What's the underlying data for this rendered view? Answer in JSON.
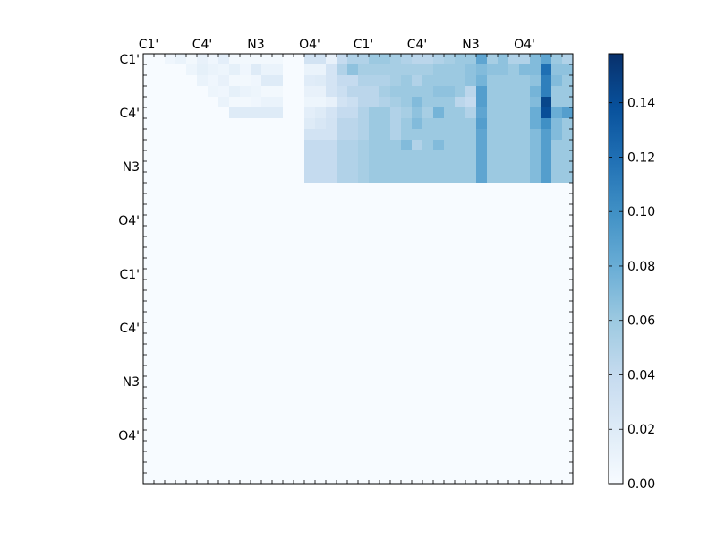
{
  "chart_data": {
    "type": "heatmap",
    "title": "",
    "xlabel": "",
    "ylabel": "",
    "n": 40,
    "x_tick_labels": [
      "C1'",
      "C4'",
      "N3",
      "O4'",
      "C1'",
      "C4'",
      "N3",
      "O4'"
    ],
    "x_tick_indices": [
      0.5,
      5.5,
      10.5,
      15.5,
      20.5,
      25.5,
      30.5,
      35.5
    ],
    "y_tick_labels": [
      "C1'",
      "C4'",
      "N3",
      "O4'",
      "C1'",
      "C4'",
      "N3",
      "O4'"
    ],
    "y_tick_indices": [
      0.5,
      5.5,
      10.5,
      15.5,
      20.5,
      25.5,
      30.5,
      35.5
    ],
    "colormap": {
      "name": "Blues",
      "stops": [
        "#f7fbff",
        "#deebf7",
        "#c6dbef",
        "#9ecae1",
        "#6baed6",
        "#4292c6",
        "#2171b5",
        "#08519c",
        "#08306b"
      ],
      "vmin": 0,
      "vmax": 0.158
    },
    "colorbar_ticks": [
      "0.00",
      "0.02",
      "0.04",
      "0.06",
      "0.08",
      "0.10",
      "0.12",
      "0.14"
    ],
    "colorbar_tick_values": [
      0,
      0.02,
      0.04,
      0.06,
      0.08,
      0.1,
      0.12,
      0.14
    ],
    "matrix_rows": [
      "0.000 0.000 0.006 0.010 0.004 0.012 0.006 0.016 0.004 0.004 0.004 0.004 0.004 0.000 0.000 0.030 0.030 0.012 0.040 0.050 0.050 0.060 0.060 0.055 0.050 0.045 0.045 0.050 0.055 0.060 0.060 0.085 0.055 0.065 0.050 0.050 0.070 0.085 0.060 0.050",
      "0.000 0.000 0.000 0.000 0.008 0.014 0.010 0.008 0.014 0.006 0.020 0.010 0.010 0.000 0.000 0.010 0.010 0.028 0.050 0.065 0.055 0.055 0.055 0.055 0.055 0.055 0.055 0.060 0.060 0.060 0.065 0.070 0.065 0.065 0.060 0.070 0.070 0.120 0.065 0.065",
      "0.000 0.000 0.000 0.000 0.000 0.010 0.006 0.012 0.004 0.004 0.006 0.020 0.020 0.000 0.000 0.018 0.020 0.028 0.040 0.040 0.050 0.050 0.050 0.055 0.060 0.050 0.060 0.060 0.060 0.060 0.065 0.075 0.060 0.060 0.060 0.060 0.065 0.110 0.070 0.060",
      "0.000 0.000 0.000 0.000 0.000 0.000 0.008 0.006 0.014 0.010 0.008 0.004 0.004 0.000 0.000 0.012 0.012 0.028 0.035 0.045 0.045 0.045 0.055 0.060 0.060 0.060 0.060 0.065 0.065 0.060 0.045 0.090 0.060 0.060 0.060 0.060 0.075 0.110 0.060 0.060",
      "0.000 0.000 0.000 0.000 0.000 0.000 0.000 0.010 0.004 0.004 0.006 0.010 0.010 0.000 0.000 0.008 0.008 0.012 0.030 0.035 0.045 0.045 0.050 0.055 0.060 0.070 0.060 0.060 0.060 0.045 0.040 0.090 0.060 0.060 0.060 0.060 0.070 0.145 0.060 0.060",
      "0.000 0.000 0.000 0.000 0.000 0.000 0.000 0.000 0.020 0.020 0.020 0.020 0.020 0.000 0.000 0.016 0.020 0.028 0.040 0.040 0.050 0.060 0.060 0.050 0.055 0.065 0.055 0.075 0.060 0.060 0.050 0.085 0.060 0.060 0.060 0.060 0.080 0.140 0.080 0.090",
      "0.000 0.000 0.000 0.000 0.000 0.000 0.000 0.000 0.000 0.000 0.000 0.000 0.000 0.000 0.000 0.020 0.025 0.030 0.045 0.045 0.050 0.060 0.060 0.050 0.060 0.070 0.060 0.060 0.060 0.060 0.060 0.090 0.060 0.060 0.060 0.060 0.080 0.100 0.070 0.060",
      "0.000 0.000 0.000 0.000 0.000 0.000 0.000 0.000 0.000 0.000 0.000 0.000 0.000 0.000 0.000 0.030 0.030 0.030 0.045 0.045 0.050 0.060 0.060 0.050 0.060 0.060 0.060 0.060 0.060 0.060 0.060 0.085 0.060 0.060 0.060 0.060 0.070 0.090 0.070 0.060",
      "0.000 0.000 0.000 0.000 0.000 0.000 0.000 0.000 0.000 0.000 0.000 0.000 0.000 0.000 0.000 0.040 0.040 0.040 0.050 0.050 0.055 0.060 0.060 0.060 0.070 0.050 0.060 0.070 0.060 0.060 0.060 0.085 0.060 0.060 0.060 0.060 0.070 0.090 0.060 0.060",
      "0.000 0.000 0.000 0.000 0.000 0.000 0.000 0.000 0.000 0.000 0.000 0.000 0.000 0.000 0.000 0.040 0.040 0.040 0.050 0.050 0.055 0.060 0.060 0.060 0.060 0.060 0.060 0.060 0.060 0.060 0.060 0.085 0.060 0.060 0.060 0.060 0.070 0.090 0.060 0.060",
      "0.000 0.000 0.000 0.000 0.000 0.000 0.000 0.000 0.000 0.000 0.000 0.000 0.000 0.000 0.000 0.040 0.040 0.040 0.050 0.050 0.055 0.060 0.060 0.060 0.060 0.060 0.060 0.060 0.060 0.060 0.060 0.085 0.060 0.060 0.060 0.060 0.070 0.090 0.060 0.060",
      "0.000 0.000 0.000 0.000 0.000 0.000 0.000 0.000 0.000 0.000 0.000 0.000 0.000 0.000 0.000 0.040 0.040 0.040 0.050 0.050 0.055 0.060 0.060 0.060 0.060 0.060 0.060 0.060 0.060 0.060 0.060 0.085 0.060 0.060 0.060 0.060 0.070 0.090 0.060 0.060",
      "0.000 0.000 0.000 0.000 0.000 0.000 0.000 0.000 0.000 0.000 0.000 0.000 0.000 0.000 0.000 0.000 0.000 0.000 0.000 0.000 0.000 0.000 0.000 0.000 0.000 0.000 0.000 0.000 0.000 0.000 0.000 0.000 0.000 0.000 0.000 0.000 0.000 0.000 0.000 0.000",
      "0.000 0.000 0.000 0.000 0.000 0.000 0.000 0.000 0.000 0.000 0.000 0.000 0.000 0.000 0.000 0.000 0.000 0.000 0.000 0.000 0.000 0.000 0.000 0.000 0.000 0.000 0.000 0.000 0.000 0.000 0.000 0.000 0.000 0.000 0.000 0.000 0.000 0.000 0.000 0.000",
      "0.000 0.000 0.000 0.000 0.000 0.000 0.000 0.000 0.000 0.000 0.000 0.000 0.000 0.000 0.000 0.000 0.000 0.000 0.000 0.000 0.000 0.000 0.000 0.000 0.000 0.000 0.000 0.000 0.000 0.000 0.000 0.000 0.000 0.000 0.000 0.000 0.000 0.000 0.000 0.000",
      "0.000 0.000 0.000 0.000 0.000 0.000 0.000 0.000 0.000 0.000 0.000 0.000 0.000 0.000 0.000 0.000 0.000 0.000 0.000 0.000 0.000 0.000 0.000 0.000 0.000 0.000 0.000 0.000 0.000 0.000 0.000 0.000 0.000 0.000 0.000 0.000 0.000 0.000 0.000 0.000",
      "0.000 0.000 0.000 0.000 0.000 0.000 0.000 0.000 0.000 0.000 0.000 0.000 0.000 0.000 0.000 0.000 0.000 0.000 0.000 0.000 0.000 0.000 0.000 0.000 0.000 0.000 0.000 0.000 0.000 0.000 0.000 0.000 0.000 0.000 0.000 0.000 0.000 0.000 0.000 0.000",
      "0.000 0.000 0.000 0.000 0.000 0.000 0.000 0.000 0.000 0.000 0.000 0.000 0.000 0.000 0.000 0.000 0.000 0.000 0.000 0.000 0.000 0.000 0.000 0.000 0.000 0.000 0.000 0.000 0.000 0.000 0.000 0.000 0.000 0.000 0.000 0.000 0.000 0.000 0.000 0.000",
      "0.000 0.000 0.000 0.000 0.000 0.000 0.000 0.000 0.000 0.000 0.000 0.000 0.000 0.000 0.000 0.000 0.000 0.000 0.000 0.000 0.000 0.000 0.000 0.000 0.000 0.000 0.000 0.000 0.000 0.000 0.000 0.000 0.000 0.000 0.000 0.000 0.000 0.000 0.000 0.000",
      "0.000 0.000 0.000 0.000 0.000 0.000 0.000 0.000 0.000 0.000 0.000 0.000 0.000 0.000 0.000 0.000 0.000 0.000 0.000 0.000 0.000 0.000 0.000 0.000 0.000 0.000 0.000 0.000 0.000 0.000 0.000 0.000 0.000 0.000 0.000 0.000 0.000 0.000 0.000 0.000",
      "0.000 0.000 0.000 0.000 0.000 0.000 0.000 0.000 0.000 0.000 0.000 0.000 0.000 0.000 0.000 0.000 0.000 0.000 0.000 0.000 0.000 0.000 0.000 0.000 0.000 0.000 0.000 0.000 0.000 0.000 0.000 0.000 0.000 0.000 0.000 0.000 0.000 0.000 0.000 0.000",
      "0.000 0.000 0.000 0.000 0.000 0.000 0.000 0.000 0.000 0.000 0.000 0.000 0.000 0.000 0.000 0.000 0.000 0.000 0.000 0.000 0.000 0.000 0.000 0.000 0.000 0.000 0.000 0.000 0.000 0.000 0.000 0.000 0.000 0.000 0.000 0.000 0.000 0.000 0.000 0.000",
      "0.000 0.000 0.000 0.000 0.000 0.000 0.000 0.000 0.000 0.000 0.000 0.000 0.000 0.000 0.000 0.000 0.000 0.000 0.000 0.000 0.000 0.000 0.000 0.000 0.000 0.000 0.000 0.000 0.000 0.000 0.000 0.000 0.000 0.000 0.000 0.000 0.000 0.000 0.000 0.000",
      "0.000 0.000 0.000 0.000 0.000 0.000 0.000 0.000 0.000 0.000 0.000 0.000 0.000 0.000 0.000 0.000 0.000 0.000 0.000 0.000 0.000 0.000 0.000 0.000 0.000 0.000 0.000 0.000 0.000 0.000 0.000 0.000 0.000 0.000 0.000 0.000 0.000 0.000 0.000 0.000",
      "0.000 0.000 0.000 0.000 0.000 0.000 0.000 0.000 0.000 0.000 0.000 0.000 0.000 0.000 0.000 0.000 0.000 0.000 0.000 0.000 0.000 0.000 0.000 0.000 0.000 0.000 0.000 0.000 0.000 0.000 0.000 0.000 0.000 0.000 0.000 0.000 0.000 0.000 0.000 0.000",
      "0.000 0.000 0.000 0.000 0.000 0.000 0.000 0.000 0.000 0.000 0.000 0.000 0.000 0.000 0.000 0.000 0.000 0.000 0.000 0.000 0.000 0.000 0.000 0.000 0.000 0.000 0.000 0.000 0.000 0.000 0.000 0.000 0.000 0.000 0.000 0.000 0.000 0.000 0.000 0.000",
      "0.000 0.000 0.000 0.000 0.000 0.000 0.000 0.000 0.000 0.000 0.000 0.000 0.000 0.000 0.000 0.000 0.000 0.000 0.000 0.000 0.000 0.000 0.000 0.000 0.000 0.000 0.000 0.000 0.000 0.000 0.000 0.000 0.000 0.000 0.000 0.000 0.000 0.000 0.000 0.000",
      "0.000 0.000 0.000 0.000 0.000 0.000 0.000 0.000 0.000 0.000 0.000 0.000 0.000 0.000 0.000 0.000 0.000 0.000 0.000 0.000 0.000 0.000 0.000 0.000 0.000 0.000 0.000 0.000 0.000 0.000 0.000 0.000 0.000 0.000 0.000 0.000 0.000 0.000 0.000 0.000",
      "0.000 0.000 0.000 0.000 0.000 0.000 0.000 0.000 0.000 0.000 0.000 0.000 0.000 0.000 0.000 0.000 0.000 0.000 0.000 0.000 0.000 0.000 0.000 0.000 0.000 0.000 0.000 0.000 0.000 0.000 0.000 0.000 0.000 0.000 0.000 0.000 0.000 0.000 0.000 0.000",
      "0.000 0.000 0.000 0.000 0.000 0.000 0.000 0.000 0.000 0.000 0.000 0.000 0.000 0.000 0.000 0.000 0.000 0.000 0.000 0.000 0.000 0.000 0.000 0.000 0.000 0.000 0.000 0.000 0.000 0.000 0.000 0.000 0.000 0.000 0.000 0.000 0.000 0.000 0.000 0.000",
      "0.000 0.000 0.000 0.000 0.000 0.000 0.000 0.000 0.000 0.000 0.000 0.000 0.000 0.000 0.000 0.000 0.000 0.000 0.000 0.000 0.000 0.000 0.000 0.000 0.000 0.000 0.000 0.000 0.000 0.000 0.000 0.000 0.000 0.000 0.000 0.000 0.000 0.000 0.000 0.000",
      "0.000 0.000 0.000 0.000 0.000 0.000 0.000 0.000 0.000 0.000 0.000 0.000 0.000 0.000 0.000 0.000 0.000 0.000 0.000 0.000 0.000 0.000 0.000 0.000 0.000 0.000 0.000 0.000 0.000 0.000 0.000 0.000 0.000 0.000 0.000 0.000 0.000 0.000 0.000 0.000",
      "0.000 0.000 0.000 0.000 0.000 0.000 0.000 0.000 0.000 0.000 0.000 0.000 0.000 0.000 0.000 0.000 0.000 0.000 0.000 0.000 0.000 0.000 0.000 0.000 0.000 0.000 0.000 0.000 0.000 0.000 0.000 0.000 0.000 0.000 0.000 0.000 0.000 0.000 0.000 0.000",
      "0.000 0.000 0.000 0.000 0.000 0.000 0.000 0.000 0.000 0.000 0.000 0.000 0.000 0.000 0.000 0.000 0.000 0.000 0.000 0.000 0.000 0.000 0.000 0.000 0.000 0.000 0.000 0.000 0.000 0.000 0.000 0.000 0.000 0.000 0.000 0.000 0.000 0.000 0.000 0.000",
      "0.000 0.000 0.000 0.000 0.000 0.000 0.000 0.000 0.000 0.000 0.000 0.000 0.000 0.000 0.000 0.000 0.000 0.000 0.000 0.000 0.000 0.000 0.000 0.000 0.000 0.000 0.000 0.000 0.000 0.000 0.000 0.000 0.000 0.000 0.000 0.000 0.000 0.000 0.000 0.000",
      "0.000 0.000 0.000 0.000 0.000 0.000 0.000 0.000 0.000 0.000 0.000 0.000 0.000 0.000 0.000 0.000 0.000 0.000 0.000 0.000 0.000 0.000 0.000 0.000 0.000 0.000 0.000 0.000 0.000 0.000 0.000 0.000 0.000 0.000 0.000 0.000 0.000 0.000 0.000 0.000",
      "0.000 0.000 0.000 0.000 0.000 0.000 0.000 0.000 0.000 0.000 0.000 0.000 0.000 0.000 0.000 0.000 0.000 0.000 0.000 0.000 0.000 0.000 0.000 0.000 0.000 0.000 0.000 0.000 0.000 0.000 0.000 0.000 0.000 0.000 0.000 0.000 0.000 0.000 0.000 0.000",
      "0.000 0.000 0.000 0.000 0.000 0.000 0.000 0.000 0.000 0.000 0.000 0.000 0.000 0.000 0.000 0.000 0.000 0.000 0.000 0.000 0.000 0.000 0.000 0.000 0.000 0.000 0.000 0.000 0.000 0.000 0.000 0.000 0.000 0.000 0.000 0.000 0.000 0.000 0.000 0.000",
      "0.000 0.000 0.000 0.000 0.000 0.000 0.000 0.000 0.000 0.000 0.000 0.000 0.000 0.000 0.000 0.000 0.000 0.000 0.000 0.000 0.000 0.000 0.000 0.000 0.000 0.000 0.000 0.000 0.000 0.000 0.000 0.000 0.000 0.000 0.000 0.000 0.000 0.000 0.000 0.000",
      "0.000 0.000 0.000 0.000 0.000 0.000 0.000 0.000 0.000 0.000 0.000 0.000 0.000 0.000 0.000 0.000 0.000 0.000 0.000 0.000 0.000 0.000 0.000 0.000 0.000 0.000 0.000 0.000 0.000 0.000 0.000 0.000 0.000 0.000 0.000 0.000 0.000 0.000 0.000 0.000"
    ]
  }
}
